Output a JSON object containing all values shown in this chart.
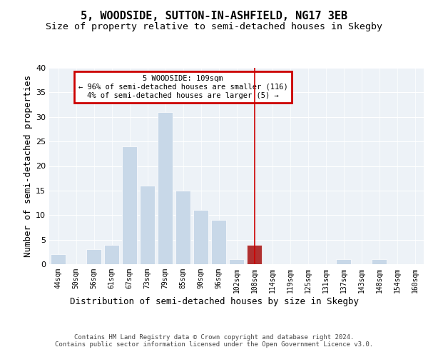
{
  "title": "5, WOODSIDE, SUTTON-IN-ASHFIELD, NG17 3EB",
  "subtitle": "Size of property relative to semi-detached houses in Skegby",
  "xlabel": "Distribution of semi-detached houses by size in Skegby",
  "ylabel": "Number of semi-detached properties",
  "categories": [
    "44sqm",
    "50sqm",
    "56sqm",
    "61sqm",
    "67sqm",
    "73sqm",
    "79sqm",
    "85sqm",
    "90sqm",
    "96sqm",
    "102sqm",
    "108sqm",
    "114sqm",
    "119sqm",
    "125sqm",
    "131sqm",
    "137sqm",
    "143sqm",
    "148sqm",
    "154sqm",
    "160sqm"
  ],
  "values": [
    2,
    0,
    3,
    4,
    24,
    16,
    31,
    15,
    11,
    9,
    1,
    4,
    0,
    0,
    0,
    0,
    1,
    0,
    1,
    0,
    0
  ],
  "bar_color": "#c8d8e8",
  "highlight_bar_index": 11,
  "highlight_bar_color": "#b03030",
  "vline_x": 11,
  "vline_color": "#cc0000",
  "annotation_text": "5 WOODSIDE: 109sqm\n← 96% of semi-detached houses are smaller (116)\n4% of semi-detached houses are larger (5) →",
  "annotation_box_color": "#cc0000",
  "ylim": [
    0,
    40
  ],
  "yticks": [
    0,
    5,
    10,
    15,
    20,
    25,
    30,
    35,
    40
  ],
  "background_color": "#edf2f7",
  "footer": "Contains HM Land Registry data © Crown copyright and database right 2024.\nContains public sector information licensed under the Open Government Licence v3.0.",
  "title_fontsize": 11,
  "subtitle_fontsize": 9.5,
  "xlabel_fontsize": 9,
  "ylabel_fontsize": 9
}
